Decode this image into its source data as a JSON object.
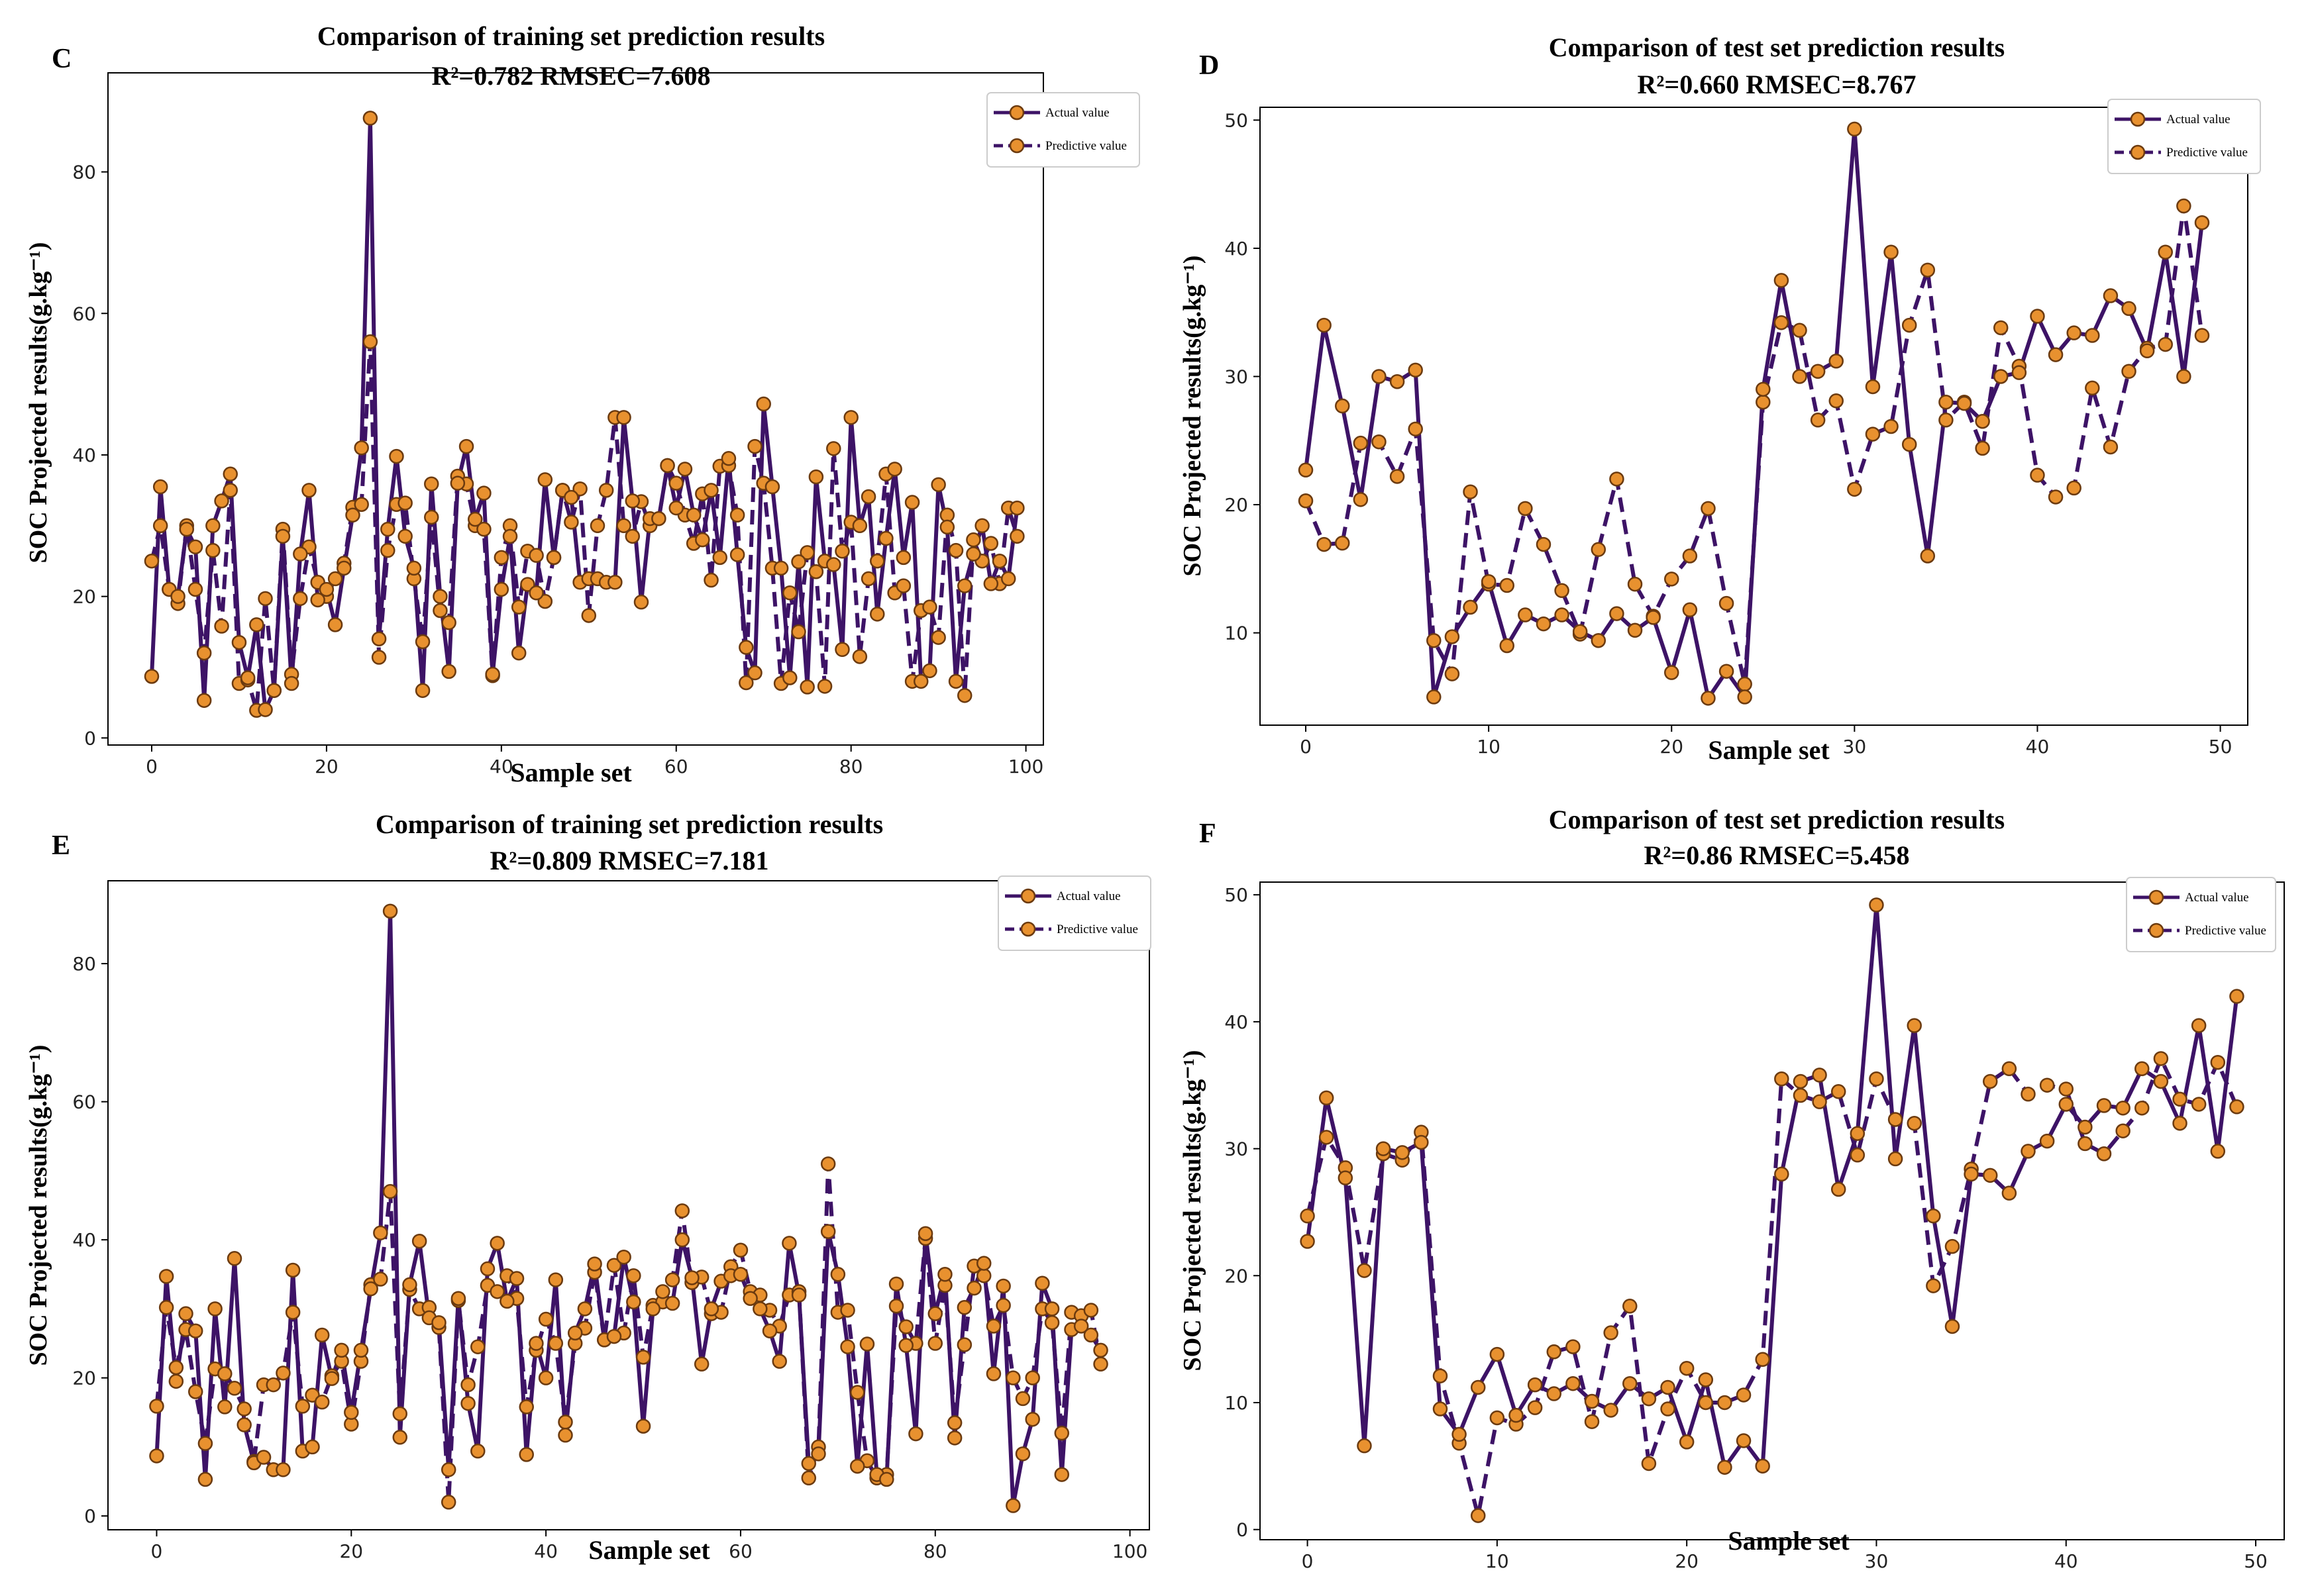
{
  "style": {
    "line_color": "#3d1366",
    "marker_fill": "#e8912f",
    "marker_edge": "#6b3a0f",
    "frame_color": "#000000"
  },
  "chart_data": [
    {
      "type": "line",
      "panel_label": "C",
      "title": "Comparison of training set prediction results",
      "subtitle": "R²=0.782 RMSEC=7.608",
      "xlabel": "Sample set",
      "ylabel": "SOC Projected results(g.kg⁻¹)",
      "xlim": [
        -5,
        102
      ],
      "ylim": [
        -1,
        94
      ],
      "xticks": [
        0,
        20,
        40,
        60,
        80,
        100
      ],
      "yticks": [
        0,
        20,
        40,
        60,
        80
      ],
      "legend_position": "top-right",
      "series": [
        {
          "name": "Actual value",
          "style": "solid",
          "values": [
            8.7,
            35.5,
            21,
            20,
            29.5,
            27,
            5.3,
            30,
            33.5,
            37.3,
            13.5,
            8.5,
            16,
            4,
            6.7,
            28.5,
            7.7,
            26,
            35,
            19.5,
            21,
            16,
            24,
            31.5,
            41,
            87.6,
            14,
            29.5,
            39.8,
            28.5,
            24,
            6.7,
            35.9,
            20,
            9.4,
            36,
            41.2,
            30.9,
            34.6,
            9,
            21,
            28.5,
            12,
            21.7,
            20.5,
            36.5,
            25.5,
            35,
            34,
            22,
            22.5,
            22.5,
            22,
            22,
            45.3,
            33.5,
            19.2,
            31,
            31,
            38.5,
            32.5,
            38,
            31.5,
            28,
            35,
            25.5,
            39.5,
            25.9,
            12.8,
            9.2,
            47.2,
            35.5,
            24,
            8.5,
            24.9,
            7.2,
            36.9,
            25,
            24.5,
            12.5,
            45.3,
            30,
            34.1,
            17.5,
            28.2,
            38,
            25.5,
            33.3,
            8,
            9.5,
            35.8,
            29.8,
            8,
            21.5,
            26,
            30,
            21.8,
            25,
            22.5,
            32.5
          ]
        },
        {
          "name": "Predictive value",
          "style": "dashed",
          "values": [
            25,
            30,
            21,
            19,
            30,
            21,
            12,
            26.5,
            15.8,
            35,
            7.7,
            8.2,
            3.9,
            19.7,
            6.7,
            29.5,
            9,
            19.7,
            27,
            22,
            20,
            22.5,
            24.7,
            32.6,
            33,
            56,
            11.4,
            26.5,
            33,
            33.2,
            22.5,
            13.6,
            31.2,
            18,
            16.3,
            37,
            35.9,
            30,
            29.5,
            8.8,
            25.5,
            30,
            18.5,
            26.4,
            25.8,
            19.3,
            25.5,
            35,
            30.5,
            35.2,
            17.3,
            30,
            35,
            45.3,
            30,
            28.5,
            33.4,
            30,
            31,
            38.5,
            36,
            31.5,
            27.5,
            34.5,
            22.3,
            38.4,
            38.5,
            31.5,
            7.8,
            41.2,
            36,
            24,
            7.7,
            20.5,
            15,
            26.2,
            23.5,
            7.3,
            40.9,
            26.4,
            30.5,
            11.5,
            22.5,
            25,
            37.3,
            20.5,
            21.5,
            8,
            18,
            18.5,
            14.2,
            31.5,
            26.5,
            6,
            28,
            25,
            27.5,
            21.8,
            32.5,
            28.5
          ]
        }
      ]
    },
    {
      "type": "line",
      "panel_label": "D",
      "title": "Comparison of test set prediction results",
      "subtitle": "R²=0.660 RMSEC=8.767",
      "xlabel": "Sample set",
      "ylabel": "SOC Projected results(g.kg⁻¹)",
      "xlim": [
        -2.5,
        51.5
      ],
      "ylim": [
        2.8,
        51
      ],
      "xticks": [
        0,
        10,
        20,
        30,
        40,
        50
      ],
      "yticks": [
        10,
        20,
        30,
        40,
        50
      ],
      "legend_position": "top-right",
      "series": [
        {
          "name": "Actual value",
          "style": "solid",
          "values": [
            22.7,
            34,
            27.7,
            20.4,
            30,
            29.6,
            30.5,
            5,
            9.7,
            12,
            14,
            9,
            11.4,
            10.7,
            11.4,
            10.1,
            9.4,
            11.5,
            10.2,
            11.2,
            6.9,
            11.8,
            4.9,
            7,
            5,
            29,
            37.5,
            30,
            30.4,
            31.2,
            49.3,
            29.2,
            39.7,
            24.7,
            16,
            28,
            27.9,
            26.5,
            30,
            30.3,
            34.7,
            31.7,
            33.4,
            33.2,
            36.3,
            35.3,
            32,
            39.7,
            30,
            42
          ]
        },
        {
          "name": "Predictive value",
          "style": "dashed",
          "values": [
            20.3,
            16.9,
            17,
            24.8,
            24.9,
            22.2,
            25.9,
            9.4,
            6.8,
            21,
            13.8,
            13.7,
            19.7,
            16.9,
            13.3,
            9.9,
            16.5,
            22,
            13.8,
            11.3,
            14.2,
            16,
            19.7,
            12.3,
            6,
            28,
            34.2,
            33.6,
            26.6,
            28.1,
            21.2,
            25.5,
            26.1,
            34,
            38.3,
            26.6,
            28,
            24.4,
            33.8,
            30.8,
            22.3,
            20.6,
            21.3,
            29.1,
            24.5,
            30.4,
            32.2,
            32.5,
            43.3,
            33.2
          ]
        }
      ]
    },
    {
      "type": "line",
      "panel_label": "E",
      "title": "Comparison of training set prediction results",
      "subtitle": "R²=0.809 RMSEC=7.181",
      "xlabel": "Sample set",
      "ylabel": "SOC Projected results(g.kg⁻¹)",
      "xlim": [
        -5,
        102
      ],
      "ylim": [
        -2,
        92
      ],
      "xticks": [
        0,
        20,
        40,
        60,
        80,
        100
      ],
      "yticks": [
        0,
        20,
        40,
        60,
        80
      ],
      "legend_position": "top-right",
      "series": [
        {
          "name": "Actual value",
          "style": "solid",
          "values": [
            8.7,
            34.7,
            19.5,
            29.3,
            26.8,
            5.3,
            30,
            15.8,
            37.3,
            13.2,
            7.7,
            8.5,
            6.7,
            6.7,
            35.6,
            9.4,
            10,
            26.2,
            19.9,
            24,
            15,
            24,
            32.9,
            41,
            87.6,
            11.4,
            33.5,
            39.8,
            28.7,
            28,
            6.7,
            31.5,
            16.3,
            9.4,
            35.8,
            39.5,
            31.1,
            34.4,
            8.9,
            25,
            20,
            34.2,
            11.7,
            26.5,
            30,
            36.5,
            25.5,
            26,
            37.5,
            31,
            13,
            30,
            32.5,
            30.8,
            40,
            34.5,
            22,
            30,
            34,
            34.8,
            35,
            31.5,
            30,
            26.8,
            22.4,
            39.5,
            32,
            7.6,
            9,
            41.2,
            35,
            24.5,
            7.2,
            24.9,
            6,
            5.3,
            33.6,
            24.7,
            11.9,
            40.9,
            29.3,
            35,
            11.3,
            30.2,
            33,
            36.6,
            20.6,
            33.3,
            1.5,
            9,
            14,
            33.7,
            30,
            6,
            27,
            27.5,
            26.2,
            24
          ]
        },
        {
          "name": "Predictive value",
          "style": "dashed",
          "values": [
            15.9,
            30.2,
            21.5,
            27,
            18,
            10.5,
            21.3,
            20.6,
            18.5,
            15.5,
            7.9,
            19,
            19,
            20.7,
            29.5,
            15.9,
            17.5,
            16.5,
            20.3,
            22.4,
            13.3,
            22.4,
            33.5,
            34.3,
            47,
            14.8,
            32.8,
            30,
            30.2,
            27.3,
            2,
            31.2,
            19,
            24.5,
            33.4,
            32.5,
            34.8,
            31.5,
            15.8,
            24,
            28.5,
            25,
            13.6,
            25,
            27.2,
            35.3,
            25.5,
            36.3,
            26.5,
            34.8,
            23,
            30.5,
            31,
            34.2,
            44.2,
            33.8,
            34.6,
            29.3,
            29.5,
            36.1,
            38.5,
            32.5,
            32,
            29.8,
            27.5,
            32,
            32.5,
            5.5,
            10,
            51,
            29.5,
            29.8,
            17.9,
            8,
            5.5,
            6,
            30.4,
            27.4,
            25,
            40.2,
            25,
            33.4,
            13.5,
            24.8,
            36.2,
            34.8,
            27.5,
            30.5,
            20,
            17,
            20,
            30,
            28,
            12,
            29.5,
            29,
            29.8,
            22
          ]
        }
      ]
    },
    {
      "type": "line",
      "panel_label": "F",
      "title": "Comparison of test set prediction results",
      "subtitle": "R²=0.86 RMSEC=5.458",
      "xlabel": "Sample set",
      "ylabel": "SOC Projected results(g.kg⁻¹)",
      "xlim": [
        -2.5,
        51.5
      ],
      "ylim": [
        -0.8,
        51
      ],
      "xticks": [
        0,
        10,
        20,
        30,
        40,
        50
      ],
      "yticks": [
        0,
        10,
        20,
        30,
        40,
        50
      ],
      "legend_position": "top-right",
      "series": [
        {
          "name": "Actual value",
          "style": "solid",
          "values": [
            22.7,
            34,
            27.7,
            6.6,
            30,
            29.7,
            30.5,
            9.5,
            7.5,
            11.2,
            13.8,
            9,
            11.4,
            10.7,
            11.5,
            10.1,
            9.4,
            11.5,
            10.3,
            11.2,
            6.9,
            11.8,
            4.9,
            7,
            5,
            28,
            35.3,
            35.8,
            26.8,
            31.2,
            49.2,
            29.2,
            39.7,
            24.7,
            16,
            28,
            27.9,
            26.5,
            29.8,
            30.6,
            33.5,
            31.7,
            33.4,
            33.2,
            36.3,
            35.3,
            32,
            39.7,
            29.8,
            42
          ]
        },
        {
          "name": "Predictive value",
          "style": "dashed",
          "values": [
            24.7,
            30.9,
            28.5,
            20.4,
            29.6,
            29.1,
            31.3,
            12.1,
            6.8,
            1.1,
            8.8,
            8.3,
            9.6,
            14,
            14.4,
            8.5,
            15.5,
            17.6,
            5.2,
            9.5,
            12.7,
            10,
            10,
            10.6,
            13.4,
            35.5,
            34.2,
            33.7,
            34.5,
            29.5,
            35.5,
            32.3,
            32,
            19.2,
            22.3,
            28.4,
            35.3,
            36.3,
            34.3,
            35,
            34.7,
            30.4,
            29.6,
            31.4,
            33.2,
            37.1,
            33.9,
            33.5,
            36.8,
            33.3
          ]
        }
      ]
    }
  ]
}
